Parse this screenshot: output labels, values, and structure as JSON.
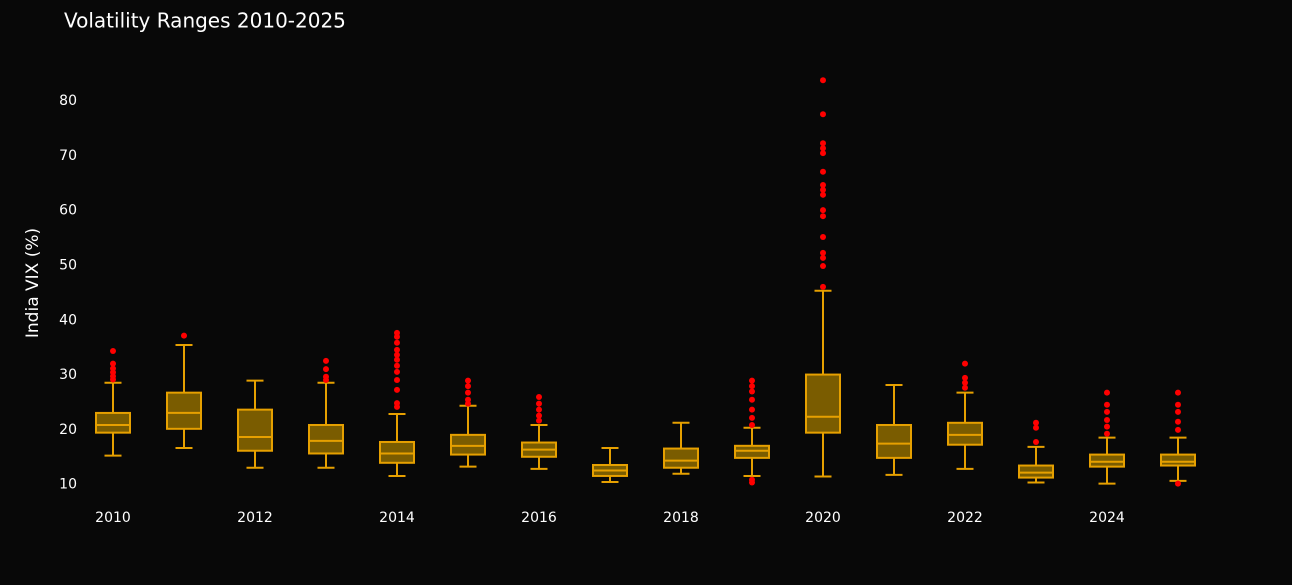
{
  "chart_data": {
    "type": "box",
    "title": "Volatility Ranges 2010-2025",
    "y_label": "India VIX (%)",
    "box_color": "#7a5c00",
    "line_color": "#e6a000",
    "outlier_color": "#ff0000",
    "xlim": [
      2009.3,
      2026
    ],
    "xticks": [
      2010,
      2012,
      2014,
      2016,
      2018,
      2020,
      2022,
      2024
    ],
    "ylim": [
      6.3,
      87.5
    ],
    "yticks": [
      10,
      20,
      30,
      40,
      50,
      60,
      70,
      80
    ],
    "x": [
      2010,
      2011,
      2012,
      2013,
      2014,
      2015,
      2016,
      2017,
      2018,
      2019,
      2020,
      2021,
      2022,
      2023,
      2024,
      2025
    ],
    "boxes": [
      {
        "low": 15.3,
        "q1": 19.5,
        "median": 20.9,
        "q3": 23.1,
        "high": 28.6,
        "outliers": [
          34.4,
          32.1,
          31.2,
          30.5,
          29.8,
          29.2
        ]
      },
      {
        "low": 16.7,
        "q1": 20.2,
        "median": 23.1,
        "q3": 26.8,
        "high": 35.5,
        "outliers": [
          37.2
        ]
      },
      {
        "low": 13.1,
        "q1": 16.2,
        "median": 18.7,
        "q3": 23.7,
        "high": 29.0,
        "outliers": []
      },
      {
        "low": 13.1,
        "q1": 15.7,
        "median": 18.0,
        "q3": 20.9,
        "high": 28.6,
        "outliers": [
          32.6,
          31.1,
          29.7,
          29.1
        ]
      },
      {
        "low": 11.6,
        "q1": 14.0,
        "median": 15.7,
        "q3": 17.8,
        "high": 22.9,
        "outliers": [
          37.7,
          37.0,
          35.9,
          34.6,
          33.7,
          32.8,
          31.7,
          30.6,
          29.1,
          27.3,
          24.9,
          24.2
        ]
      },
      {
        "low": 13.3,
        "q1": 15.5,
        "median": 17.1,
        "q3": 19.1,
        "high": 24.4,
        "outliers": [
          29.0,
          28.0,
          26.8,
          25.5,
          24.8
        ]
      },
      {
        "low": 12.9,
        "q1": 15.1,
        "median": 16.4,
        "q3": 17.7,
        "high": 20.9,
        "outliers": [
          26.0,
          24.8,
          23.7,
          22.6,
          21.7
        ]
      },
      {
        "low": 10.5,
        "q1": 11.6,
        "median": 12.6,
        "q3": 13.6,
        "high": 16.7,
        "outliers": []
      },
      {
        "low": 12.0,
        "q1": 13.1,
        "median": 14.4,
        "q3": 16.6,
        "high": 21.3,
        "outliers": []
      },
      {
        "low": 11.6,
        "q1": 14.9,
        "median": 16.2,
        "q3": 17.1,
        "high": 20.4,
        "outliers": [
          29.0,
          28.0,
          27.0,
          25.5,
          23.7,
          22.2,
          20.9,
          10.9,
          10.4
        ]
      },
      {
        "low": 11.5,
        "q1": 19.5,
        "median": 22.4,
        "q3": 30.1,
        "high": 45.4,
        "outliers": [
          83.8,
          77.6,
          72.3,
          71.4,
          70.5,
          67.1,
          64.7,
          63.8,
          62.9,
          60.1,
          59.0,
          55.2,
          52.3,
          51.4,
          49.9,
          46.1
        ]
      },
      {
        "low": 11.8,
        "q1": 14.9,
        "median": 17.5,
        "q3": 20.9,
        "high": 28.2,
        "outliers": []
      },
      {
        "low": 12.9,
        "q1": 17.3,
        "median": 19.1,
        "q3": 21.3,
        "high": 26.8,
        "outliers": [
          32.1,
          29.5,
          28.6,
          27.7
        ]
      },
      {
        "low": 10.4,
        "q1": 11.3,
        "median": 12.2,
        "q3": 13.5,
        "high": 16.9,
        "outliers": [
          21.3,
          20.4,
          17.8
        ]
      },
      {
        "low": 10.2,
        "q1": 13.3,
        "median": 14.2,
        "q3": 15.5,
        "high": 18.6,
        "outliers": [
          26.8,
          24.6,
          23.3,
          21.8,
          20.6,
          19.3
        ]
      },
      {
        "low": 10.7,
        "q1": 13.5,
        "median": 14.2,
        "q3": 15.5,
        "high": 18.6,
        "outliers": [
          26.8,
          24.6,
          23.3,
          21.5,
          20.0,
          10.2
        ]
      }
    ]
  }
}
